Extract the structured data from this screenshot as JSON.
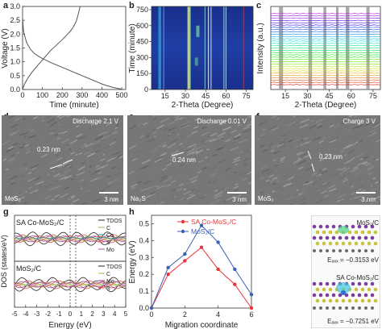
{
  "panels": {
    "a": {
      "label": "a",
      "xlabel": "Time (minute)",
      "ylabel": "Voltage (V)",
      "xticks": [
        "0",
        "100",
        "200",
        "300",
        "400",
        "500"
      ],
      "yticks": [
        "0.0",
        "0.5",
        "1.0",
        "1.5",
        "2.0",
        "2.5",
        "3.0"
      ],
      "xlim": [
        0,
        520
      ],
      "ylim": [
        0,
        3.0
      ],
      "discharge_x": [
        0,
        5,
        20,
        40,
        60,
        80,
        100,
        120,
        140,
        160,
        180,
        200,
        220,
        240,
        260,
        280,
        300,
        320,
        340,
        360,
        380,
        400,
        420,
        440,
        460,
        480,
        500
      ],
      "discharge_y": [
        2.6,
        2.1,
        1.7,
        1.45,
        1.3,
        1.2,
        1.12,
        1.05,
        0.98,
        0.92,
        0.86,
        0.8,
        0.74,
        0.68,
        0.62,
        0.56,
        0.5,
        0.44,
        0.38,
        0.32,
        0.26,
        0.2,
        0.15,
        0.11,
        0.07,
        0.04,
        0.01
      ],
      "charge_x": [
        0,
        10,
        30,
        50,
        80,
        110,
        140,
        170,
        200,
        220,
        240,
        255,
        270,
        280,
        290
      ],
      "charge_y": [
        0.01,
        0.2,
        0.45,
        0.65,
        0.9,
        1.15,
        1.4,
        1.6,
        1.8,
        1.95,
        2.1,
        2.25,
        2.45,
        2.7,
        3.0
      ]
    },
    "b": {
      "label": "b",
      "xlabel": "2-Theta (Degree)",
      "ylabel": "Time (minute)",
      "xticks": [
        "15",
        "30",
        "45",
        "60",
        "75"
      ],
      "yticks": [
        "0",
        "150",
        "300",
        "450",
        "600",
        "750"
      ],
      "xlim": [
        5,
        80
      ],
      "ylim": [
        0,
        780
      ]
    },
    "c": {
      "label": "c",
      "xlabel": "2-Theta (Degree)",
      "ylabel": "Intensity (a.u.)",
      "xticks": [
        "15",
        "30",
        "45",
        "60",
        "75"
      ]
    },
    "d": {
      "label": "d",
      "title": "Discharge 2.1 V",
      "annotation": "0.23 nm",
      "corner": "MoS₂",
      "scale": "3 nm"
    },
    "e": {
      "label": "e",
      "title": "Discharge 0.01 V",
      "annotation": "0.24 nm",
      "corner": "Na₂S",
      "scale": "3 nm"
    },
    "f": {
      "label": "f",
      "title": "Charge 3 V",
      "annotation": "0.23 nm",
      "corner": "MoS₂",
      "scale": "3 nm"
    },
    "g": {
      "label": "g",
      "ylabel": "DOS (states/eV)",
      "xlabel": "Energy (eV)",
      "xticks": [
        "-5",
        "-4",
        "-3",
        "-2",
        "-1",
        "0",
        "1",
        "2",
        "3",
        "4",
        "5"
      ],
      "top_title": "SA Co-MoS₂/C",
      "bottom_title": "MoS₂/C",
      "top_legend": [
        "TDOS",
        "C",
        "Co",
        "S",
        "Mo"
      ],
      "bottom_legend": [
        "TDOS",
        "C",
        "Mo",
        "S"
      ]
    },
    "h": {
      "label": "h",
      "xlabel": "Migration coordinate",
      "ylabel": "Energy (eV)",
      "xticks": [
        "0",
        "2",
        "4",
        "6"
      ],
      "yticks": [
        "0.0",
        "0.1",
        "0.2",
        "0.3",
        "0.4",
        "0.5"
      ]
    },
    "i": {
      "label": "i",
      "top_title": "MoS₂/C",
      "top_energy": "Eₐₓₓ = −0.3153 eV",
      "bottom_title": "SA Co-MoS₂/C",
      "bottom_energy": "Eₐₓₓ = −0.7251 eV"
    }
  },
  "chart_data": [
    {
      "type": "line",
      "xlabel": "Time (minute)",
      "ylabel": "Voltage (V)",
      "xlim": [
        0,
        520
      ],
      "ylim": [
        0,
        3.0
      ],
      "series": [
        {
          "x": [
            0,
            5,
            20,
            40,
            60,
            80,
            100,
            120,
            140,
            160,
            180,
            200,
            220,
            240,
            260,
            280,
            300,
            320,
            340,
            360,
            380,
            400,
            420,
            440,
            460,
            480,
            500
          ],
          "values": [
            2.6,
            2.1,
            1.7,
            1.45,
            1.3,
            1.2,
            1.12,
            1.05,
            0.98,
            0.92,
            0.86,
            0.8,
            0.74,
            0.68,
            0.62,
            0.56,
            0.5,
            0.44,
            0.38,
            0.32,
            0.26,
            0.2,
            0.15,
            0.11,
            0.07,
            0.04,
            0.01
          ]
        },
        {
          "x": [
            0,
            10,
            30,
            50,
            80,
            110,
            140,
            170,
            200,
            220,
            240,
            255,
            270,
            280,
            290
          ],
          "values": [
            0.01,
            0.2,
            0.45,
            0.65,
            0.9,
            1.15,
            1.4,
            1.6,
            1.8,
            1.95,
            2.1,
            2.25,
            2.45,
            2.7,
            3.0
          ]
        }
      ]
    },
    {
      "type": "line",
      "xlabel": "Migration coordinate",
      "ylabel": "Energy (eV)",
      "xlim": [
        0,
        6
      ],
      "ylim": [
        0,
        0.55
      ],
      "x": [
        0,
        1,
        2,
        3,
        4,
        5,
        6
      ],
      "series": [
        {
          "name": "SA Co-MoS₂/C",
          "color": "#e8343a",
          "values": [
            0.0,
            0.2,
            0.28,
            0.36,
            0.23,
            0.14,
            0.0
          ]
        },
        {
          "name": "MoS₂/C",
          "color": "#3b5fb5",
          "values": [
            0.0,
            0.24,
            0.32,
            0.49,
            0.39,
            0.23,
            0.08
          ]
        }
      ]
    }
  ]
}
